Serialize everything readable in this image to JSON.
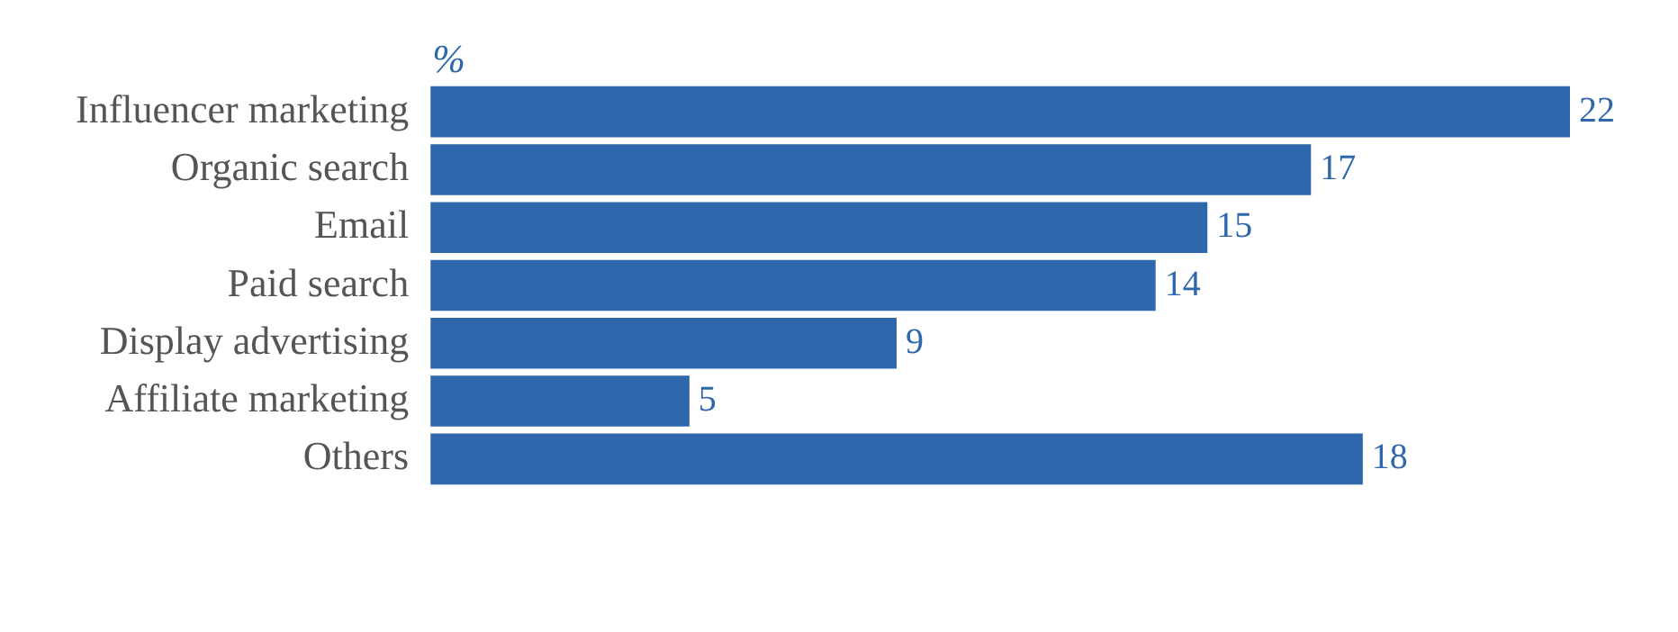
{
  "chart_data": {
    "type": "bar",
    "orientation": "horizontal",
    "xlabel": "%",
    "categories": [
      "Influencer marketing",
      "Organic search",
      "Email",
      "Paid search",
      "Display advertising",
      "Affiliate marketing",
      "Others"
    ],
    "values": [
      22,
      17,
      15,
      14,
      9,
      5,
      18
    ],
    "color": "#2e67ac",
    "data_labels": true,
    "grid": false,
    "legend": false,
    "tick_labels": "y"
  }
}
